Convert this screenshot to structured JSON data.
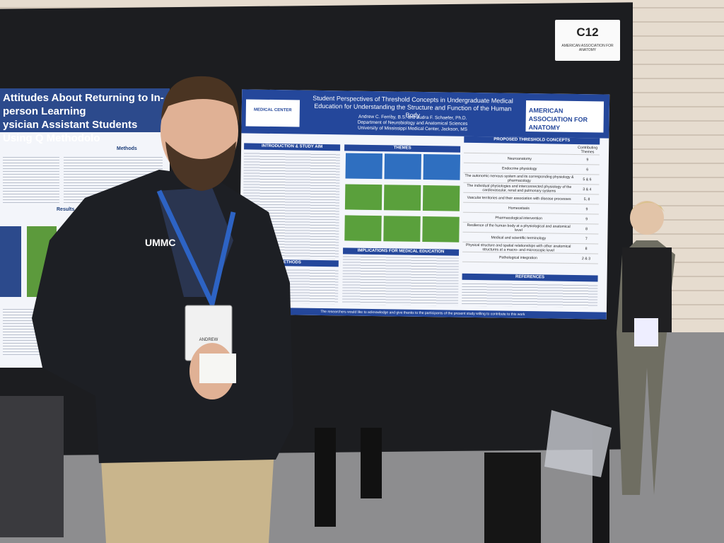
{
  "sign": {
    "label": "C12",
    "org": "AMERICAN ASSOCIATION FOR ANATOMY"
  },
  "left_poster": {
    "title_line1": "Attitudes About Returning to In-person Learning",
    "title_line2": "ysician Assistant Students Using Q Methodolo",
    "methods": "Methods",
    "results": "Results"
  },
  "poster": {
    "logo": "MEDICAL CENTER",
    "title": "Student Perspectives of Threshold Concepts in Undergraduate Medical Education for Understanding the Structure and Function of the Human Body",
    "authors": "Andrew C. Ferriby, B.S. and Audra F. Schaefer, Ph.D.",
    "department": "Department of Neurobiology and Anatomical Sciences",
    "university": "University of Mississippi Medical Center, Jackson, MS",
    "org": "AMERICAN ASSOCIATION FOR ANATOMY",
    "sections": {
      "intro": "INTRODUCTION & STUDY AIM",
      "themes": "THEMES",
      "methods": "METHODS",
      "implications": "IMPLICATIONS FOR MEDICAL EDUCATION",
      "concepts": "PROPOSED THRESHOLD CONCEPTS",
      "references": "REFERENCES"
    },
    "table": {
      "header": "Contributing Themes",
      "rows": [
        [
          "Neuroanatomy",
          "9"
        ],
        [
          "Endocrine physiology",
          "6"
        ],
        [
          "The autonomic nervous system and its corresponding physiology & pharmacology",
          "5 & 6"
        ],
        [
          "The individual physiologies and interconnected physiology of the cardiovascular, renal and pulmonary systems",
          "3 & 4"
        ],
        [
          "Vascular territories and their association with disease processes",
          "5, 8"
        ],
        [
          "Homeostasis",
          "9"
        ],
        [
          "Pharmacological intervention",
          "9"
        ],
        [
          "Resilience of the human body at a physiological and anatomical level",
          "8"
        ],
        [
          "Medical and scientific terminology",
          "7"
        ],
        [
          "Physical structure and spatial relationships with other anatomical structures at a macro- and microscopic level",
          "8"
        ],
        [
          "Pathological integration",
          "2 & 3"
        ]
      ]
    },
    "acknowledgement": "The researchers would like to acknowledge and give thanks to the participants of the present study willing to contribute to this work"
  },
  "jacket": "UMMC",
  "badge": "ANDREW"
}
